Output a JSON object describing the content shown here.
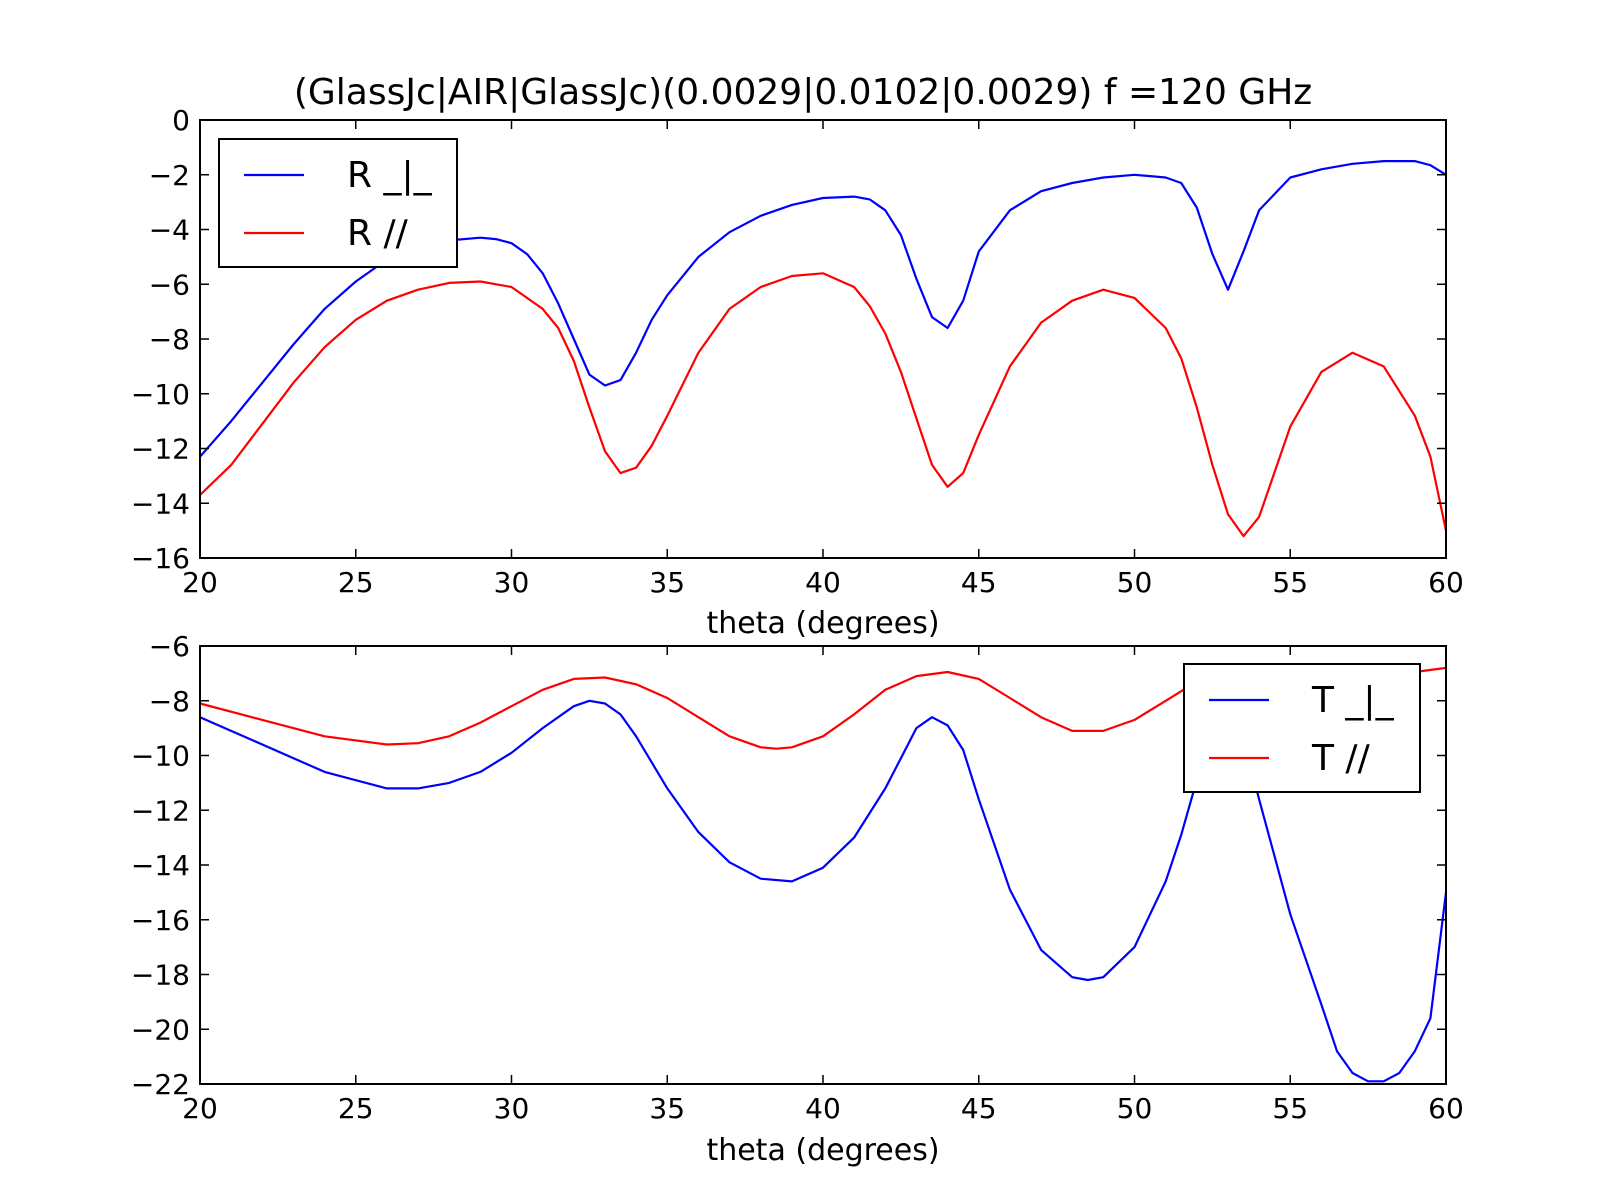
{
  "chart_data": [
    {
      "type": "line",
      "title": "(GlassJc|AIR|GlassJc)(0.0029|0.0102|0.0029) f =120 GHz",
      "xlabel": "theta (degrees)",
      "ylabel": "",
      "xlim": [
        20,
        60
      ],
      "ylim": [
        -16,
        0
      ],
      "xticks": [
        "20",
        "25",
        "30",
        "35",
        "40",
        "45",
        "50",
        "55",
        "60"
      ],
      "yticks": [
        "0",
        "−2",
        "−4",
        "−6",
        "−8",
        "−10",
        "−12",
        "−14",
        "−16"
      ],
      "grid": false,
      "legend_position": "upper-left",
      "series": [
        {
          "name": "R _|_",
          "color": "#0000ff",
          "x": [
            20,
            21,
            22,
            23,
            24,
            25,
            26,
            27,
            28,
            29,
            29.5,
            30,
            30.5,
            31,
            31.5,
            32,
            32.5,
            33,
            33.5,
            34,
            34.5,
            35,
            36,
            37,
            38,
            39,
            40,
            41,
            41.5,
            42,
            42.5,
            43,
            43.5,
            44,
            44.5,
            45,
            46,
            47,
            48,
            49,
            50,
            51,
            51.5,
            52,
            52.5,
            53,
            53.5,
            54,
            55,
            56,
            57,
            58,
            59,
            59.5,
            60
          ],
          "y": [
            -12.3,
            -11.0,
            -9.6,
            -8.2,
            -6.9,
            -5.9,
            -5.1,
            -4.6,
            -4.4,
            -4.3,
            -4.35,
            -4.5,
            -4.9,
            -5.6,
            -6.7,
            -8.0,
            -9.3,
            -9.7,
            -9.5,
            -8.5,
            -7.3,
            -6.4,
            -5.0,
            -4.1,
            -3.5,
            -3.1,
            -2.85,
            -2.8,
            -2.9,
            -3.3,
            -4.2,
            -5.8,
            -7.2,
            -7.6,
            -6.6,
            -4.8,
            -3.3,
            -2.6,
            -2.3,
            -2.1,
            -2.0,
            -2.1,
            -2.3,
            -3.2,
            -4.9,
            -6.2,
            -4.8,
            -3.3,
            -2.1,
            -1.8,
            -1.6,
            -1.5,
            -1.5,
            -1.65,
            -2.0
          ]
        },
        {
          "name": "R //",
          "color": "#ff0000",
          "x": [
            20,
            21,
            22,
            23,
            24,
            25,
            26,
            27,
            28,
            29,
            30,
            31,
            31.5,
            32,
            32.5,
            33,
            33.5,
            34,
            34.5,
            35,
            36,
            37,
            38,
            39,
            40,
            41,
            41.5,
            42,
            42.5,
            43,
            43.5,
            44,
            44.5,
            45,
            46,
            47,
            48,
            49,
            50,
            51,
            51.5,
            52,
            52.5,
            53,
            53.5,
            54,
            55,
            56,
            57,
            58,
            59,
            59.5,
            60
          ],
          "y": [
            -13.7,
            -12.6,
            -11.1,
            -9.6,
            -8.3,
            -7.3,
            -6.6,
            -6.2,
            -5.95,
            -5.9,
            -6.1,
            -6.9,
            -7.6,
            -8.8,
            -10.5,
            -12.1,
            -12.9,
            -12.7,
            -11.9,
            -10.8,
            -8.5,
            -6.9,
            -6.1,
            -5.7,
            -5.6,
            -6.1,
            -6.8,
            -7.8,
            -9.2,
            -10.9,
            -12.6,
            -13.4,
            -12.9,
            -11.5,
            -9.0,
            -7.4,
            -6.6,
            -6.2,
            -6.5,
            -7.6,
            -8.7,
            -10.5,
            -12.6,
            -14.4,
            -15.2,
            -14.5,
            -11.2,
            -9.2,
            -8.5,
            -9.0,
            -10.8,
            -12.3,
            -15.0
          ]
        }
      ]
    },
    {
      "type": "line",
      "title": "",
      "xlabel": "theta (degrees)",
      "ylabel": "",
      "xlim": [
        20,
        60
      ],
      "ylim": [
        -22,
        -6
      ],
      "xticks": [
        "20",
        "25",
        "30",
        "35",
        "40",
        "45",
        "50",
        "55",
        "60"
      ],
      "yticks": [
        "−6",
        "−8",
        "−10",
        "−12",
        "−14",
        "−16",
        "−18",
        "−20",
        "−22"
      ],
      "grid": false,
      "legend_position": "upper-right",
      "series": [
        {
          "name": "T _|_",
          "color": "#0000ff",
          "x": [
            20,
            22,
            24,
            26,
            27,
            28,
            29,
            30,
            31,
            32,
            32.5,
            33,
            33.5,
            34,
            35,
            36,
            37,
            38,
            39,
            40,
            41,
            42,
            42.5,
            43,
            43.5,
            44,
            44.5,
            45,
            46,
            47,
            48,
            48.5,
            49,
            50,
            51,
            51.5,
            52,
            52.5,
            53,
            53.5,
            54,
            55,
            56,
            56.5,
            57,
            57.5,
            58,
            58.5,
            59,
            59.5,
            60
          ],
          "y": [
            -8.6,
            -9.6,
            -10.6,
            -11.2,
            -11.2,
            -11.0,
            -10.6,
            -9.9,
            -9.0,
            -8.2,
            -8.0,
            -8.1,
            -8.5,
            -9.3,
            -11.2,
            -12.8,
            -13.9,
            -14.5,
            -14.6,
            -14.1,
            -13.0,
            -11.2,
            -10.1,
            -9.0,
            -8.6,
            -8.9,
            -9.8,
            -11.6,
            -14.9,
            -17.1,
            -18.1,
            -18.2,
            -18.1,
            -17.0,
            -14.6,
            -12.9,
            -10.9,
            -9.0,
            -8.4,
            -9.4,
            -11.6,
            -15.8,
            -19.1,
            -20.8,
            -21.6,
            -21.9,
            -21.9,
            -21.6,
            -20.8,
            -19.6,
            -15.0
          ]
        },
        {
          "name": "T //",
          "color": "#ff0000",
          "x": [
            20,
            22,
            24,
            26,
            27,
            28,
            29,
            30,
            31,
            32,
            33,
            34,
            35,
            36,
            37,
            38,
            38.5,
            39,
            40,
            41,
            42,
            43,
            44,
            45,
            46,
            47,
            48,
            49,
            50,
            51,
            52,
            53,
            54,
            55,
            56,
            57,
            58,
            59,
            60
          ],
          "y": [
            -8.1,
            -8.7,
            -9.3,
            -9.6,
            -9.55,
            -9.3,
            -8.8,
            -8.2,
            -7.6,
            -7.2,
            -7.15,
            -7.4,
            -7.9,
            -8.6,
            -9.3,
            -9.7,
            -9.75,
            -9.7,
            -9.3,
            -8.5,
            -7.6,
            -7.1,
            -6.95,
            -7.2,
            -7.9,
            -8.6,
            -9.1,
            -9.1,
            -8.7,
            -8.0,
            -7.3,
            -6.9,
            -6.8,
            -6.9,
            -7.1,
            -7.2,
            -7.1,
            -6.95,
            -6.8
          ]
        }
      ]
    }
  ]
}
